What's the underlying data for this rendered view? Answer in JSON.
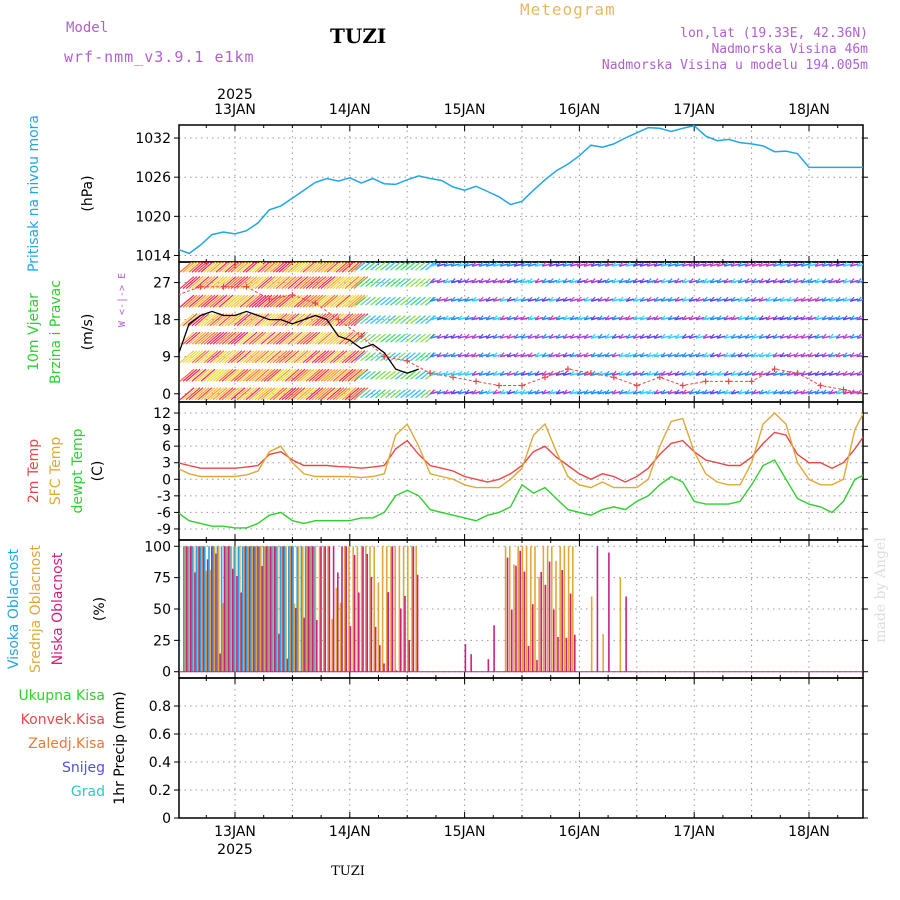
{
  "header": {
    "model_label": "Model",
    "model_name": "wrf-nmm_v3.9.1  e1km",
    "station": "TUZI",
    "product": "Meteogram",
    "coords": "lon,lat (19.33E, 42.36N)",
    "elevation": "Nadmorska Visina 46m",
    "model_elevation": "Nadmorska Visina u modelu 194.005m"
  },
  "footer": {
    "station": "TUZI",
    "watermark": "made by Angel"
  },
  "colors": {
    "pressure": "#22a6e8",
    "temp2m": "#e84848",
    "sfc_temp": "#e0a838",
    "dewpt": "#2ed02e",
    "cloud_high": "#22a6e8",
    "cloud_mid": "#e0a838",
    "cloud_low": "#d0207a",
    "wind_speed": "#000000",
    "wind_gust": "#e84848",
    "title_purple": "#b060d0",
    "product_orange": "#e8b860"
  },
  "time_axis": {
    "year": "2025",
    "ticks": [
      "13JAN",
      "14JAN",
      "15JAN",
      "16JAN",
      "17JAN",
      "18JAN"
    ]
  },
  "chart_data": [
    {
      "type": "line",
      "ylabel_lines": [
        "Pritisak na nivou mora",
        "(hPa)"
      ],
      "ylim": [
        1013,
        1034
      ],
      "yticks": [
        1014,
        1020,
        1026,
        1032
      ],
      "grid": true,
      "x_unit": "day from 13JAN 00UTC",
      "series": [
        {
          "name": "Pritisak na nivou mora",
          "color": "#22a6e8",
          "x": [
            -0.6,
            -0.5,
            -0.4,
            -0.3,
            -0.2,
            -0.1,
            0.0,
            0.1,
            0.2,
            0.3,
            0.4,
            0.5,
            0.6,
            0.7,
            0.8,
            0.9,
            1.0,
            1.1,
            1.2,
            1.3,
            1.4,
            1.5,
            1.6,
            1.7,
            1.8,
            1.9,
            2.0,
            2.1,
            2.2,
            2.3,
            2.4,
            2.5,
            2.6,
            2.7,
            2.8,
            2.9,
            3.0,
            3.1,
            3.2,
            3.3,
            3.4,
            3.5,
            3.6,
            3.7,
            3.8,
            3.9,
            4.0,
            4.1,
            4.2,
            4.3,
            4.4,
            4.5,
            4.6,
            4.7,
            4.8,
            4.9,
            5.0,
            5.1,
            5.2,
            5.3,
            5.4,
            5.5
          ],
          "values": [
            1016.8,
            1015.0,
            1014.3,
            1015.6,
            1017.2,
            1017.6,
            1017.3,
            1017.8,
            1019.0,
            1021.0,
            1021.6,
            1022.8,
            1024.0,
            1025.2,
            1025.8,
            1025.4,
            1025.9,
            1025.1,
            1025.8,
            1025.0,
            1024.9,
            1025.6,
            1026.2,
            1025.8,
            1025.5,
            1024.5,
            1024.0,
            1024.6,
            1023.8,
            1023.0,
            1021.8,
            1022.3,
            1024.0,
            1025.6,
            1027.0,
            1028.0,
            1029.3,
            1030.9,
            1030.6,
            1031.1,
            1032.0,
            1032.8,
            1033.6,
            1033.5,
            1033.0,
            1033.5,
            1033.9,
            1032.3,
            1031.6,
            1031.8,
            1031.3,
            1031.1,
            1030.8,
            1029.9,
            1030.0,
            1029.6,
            1027.5,
            1027.5,
            1027.5,
            1027.5,
            1027.5,
            1027.5
          ]
        }
      ]
    },
    {
      "type": "line",
      "ylabel_lines": [
        "10m Vjetar",
        "Brzina i Pravac",
        "(m/s)"
      ],
      "compass_label": "W <-|-> E",
      "ylim": [
        -2,
        32
      ],
      "yticks": [
        0,
        9,
        18,
        27
      ],
      "grid": true,
      "series": [
        {
          "name": "wind speed",
          "color": "#000000",
          "x": [
            -0.6,
            -0.5,
            -0.4,
            -0.3,
            -0.2,
            -0.1,
            0.0,
            0.1,
            0.2,
            0.3,
            0.4,
            0.5,
            0.6,
            0.7,
            0.8,
            0.9,
            1.0,
            1.1,
            1.2,
            1.3,
            1.4,
            1.5,
            1.6
          ],
          "values": [
            0,
            9,
            17,
            19,
            20,
            19,
            19,
            20,
            19,
            18,
            18,
            17,
            18,
            19,
            18,
            14,
            13,
            11,
            12,
            10,
            6,
            5,
            6
          ]
        },
        {
          "name": "wind gust",
          "color": "#e84848",
          "x": [
            -0.5,
            -0.3,
            -0.1,
            0.1,
            0.3,
            0.5,
            0.7,
            0.9,
            1.1,
            1.3,
            1.5,
            1.7,
            1.9,
            2.1,
            2.3,
            2.5,
            2.7,
            2.9,
            3.1,
            3.3,
            3.5,
            3.7,
            3.9,
            4.1,
            4.3,
            4.5,
            4.7,
            4.9,
            5.1,
            5.3,
            5.5
          ],
          "values": [
            24,
            26,
            26,
            26,
            23,
            24,
            22,
            18,
            14,
            9,
            8,
            5,
            4,
            3,
            2,
            2,
            4,
            6,
            5,
            4,
            2,
            4,
            2,
            3,
            3,
            3,
            6,
            5,
            2,
            1,
            0
          ]
        }
      ]
    },
    {
      "type": "line",
      "ylabel_lines": [
        "2m Temp",
        "SFC Temp",
        "dewpt Temp",
        "(C)"
      ],
      "ylim": [
        -11,
        14
      ],
      "yticks": [
        -9,
        -6,
        -3,
        0,
        3,
        6,
        9,
        12
      ],
      "grid": true,
      "series": [
        {
          "name": "2m Temp",
          "color": "#e84848",
          "x": [
            -0.6,
            -0.5,
            -0.4,
            -0.3,
            -0.2,
            -0.1,
            0.0,
            0.1,
            0.2,
            0.3,
            0.4,
            0.5,
            0.6,
            0.7,
            0.8,
            0.9,
            1.0,
            1.1,
            1.2,
            1.3,
            1.4,
            1.5,
            1.6,
            1.7,
            1.8,
            1.9,
            2.0,
            2.1,
            2.2,
            2.3,
            2.4,
            2.5,
            2.6,
            2.7,
            2.8,
            2.9,
            3.0,
            3.1,
            3.2,
            3.3,
            3.4,
            3.5,
            3.6,
            3.7,
            3.8,
            3.9,
            4.0,
            4.1,
            4.2,
            4.3,
            4.4,
            4.5,
            4.6,
            4.7,
            4.8,
            4.9,
            5.0,
            5.1,
            5.2,
            5.3,
            5.4,
            5.5
          ],
          "values": [
            4.5,
            3.0,
            2.5,
            2.0,
            2.0,
            2.0,
            2.0,
            2.2,
            2.5,
            4.5,
            5.0,
            3.5,
            2.5,
            2.5,
            2.5,
            2.3,
            2.2,
            2.0,
            2.2,
            2.5,
            5.5,
            7.0,
            4.5,
            2.5,
            2.0,
            1.5,
            0.5,
            0.0,
            -0.5,
            0.0,
            1.0,
            2.5,
            5.0,
            6.0,
            4.0,
            2.5,
            1.0,
            0.0,
            1.0,
            0.5,
            -0.5,
            0.5,
            2.0,
            4.5,
            6.5,
            7.0,
            5.0,
            3.5,
            3.0,
            2.5,
            2.5,
            4.0,
            6.5,
            8.5,
            8.0,
            4.5,
            3.0,
            3.0,
            2.0,
            3.0,
            5.5,
            8.5
          ]
        },
        {
          "name": "SFC Temp",
          "color": "#e0a838",
          "x": [
            -0.6,
            -0.5,
            -0.4,
            -0.3,
            -0.2,
            -0.1,
            0.0,
            0.1,
            0.2,
            0.3,
            0.4,
            0.5,
            0.6,
            0.7,
            0.8,
            0.9,
            1.0,
            1.1,
            1.2,
            1.3,
            1.4,
            1.5,
            1.6,
            1.7,
            1.8,
            1.9,
            2.0,
            2.1,
            2.2,
            2.3,
            2.4,
            2.5,
            2.6,
            2.7,
            2.8,
            2.9,
            3.0,
            3.1,
            3.2,
            3.3,
            3.4,
            3.5,
            3.6,
            3.7,
            3.8,
            3.9,
            4.0,
            4.1,
            4.2,
            4.3,
            4.4,
            4.5,
            4.6,
            4.7,
            4.8,
            4.9,
            5.0,
            5.1,
            5.2,
            5.3,
            5.4,
            5.5
          ],
          "values": [
            6.0,
            2.0,
            1.0,
            0.5,
            0.5,
            0.5,
            0.5,
            0.8,
            1.5,
            5.0,
            6.0,
            3.0,
            1.0,
            0.5,
            0.5,
            0.5,
            0.5,
            0.3,
            0.5,
            1.0,
            8.0,
            10.0,
            6.0,
            1.0,
            0.5,
            0.0,
            -1.0,
            -1.5,
            -1.5,
            -1.5,
            0.0,
            2.0,
            8.0,
            10.0,
            5.0,
            0.5,
            -1.0,
            -1.5,
            -0.5,
            -1.5,
            -1.5,
            -1.5,
            0.0,
            6.0,
            10.5,
            11.0,
            5.0,
            1.0,
            -0.5,
            -1.0,
            -1.0,
            3.0,
            10.0,
            12.0,
            10.0,
            3.0,
            0.0,
            -1.0,
            -1.0,
            0.0,
            9.0,
            13.0
          ]
        },
        {
          "name": "dewpt Temp",
          "color": "#2ed02e",
          "x": [
            -0.6,
            -0.5,
            -0.4,
            -0.3,
            -0.2,
            -0.1,
            0.0,
            0.1,
            0.2,
            0.3,
            0.4,
            0.5,
            0.6,
            0.7,
            0.8,
            0.9,
            1.0,
            1.1,
            1.2,
            1.3,
            1.4,
            1.5,
            1.6,
            1.7,
            1.8,
            1.9,
            2.0,
            2.1,
            2.2,
            2.3,
            2.4,
            2.5,
            2.6,
            2.7,
            2.8,
            2.9,
            3.0,
            3.1,
            3.2,
            3.3,
            3.4,
            3.5,
            3.6,
            3.7,
            3.8,
            3.9,
            4.0,
            4.1,
            4.2,
            4.3,
            4.4,
            4.5,
            4.6,
            4.7,
            4.8,
            4.9,
            5.0,
            5.1,
            5.2,
            5.3,
            5.4,
            5.5
          ],
          "values": [
            -3.0,
            -6.0,
            -7.5,
            -8.0,
            -8.5,
            -8.5,
            -8.8,
            -8.8,
            -8.0,
            -6.5,
            -6.0,
            -7.5,
            -8.0,
            -7.5,
            -7.5,
            -7.5,
            -7.5,
            -7.0,
            -7.0,
            -6.0,
            -3.0,
            -2.0,
            -3.0,
            -5.5,
            -6.0,
            -6.5,
            -7.0,
            -7.5,
            -6.5,
            -6.0,
            -5.0,
            -1.0,
            -2.5,
            -1.5,
            -3.5,
            -5.5,
            -6.0,
            -6.5,
            -5.5,
            -5.0,
            -5.5,
            -4.0,
            -3.0,
            -1.0,
            0.5,
            -0.5,
            -4.0,
            -4.5,
            -4.5,
            -4.5,
            -4.0,
            -1.0,
            2.5,
            3.5,
            0.0,
            -3.5,
            -4.5,
            -5.0,
            -6.0,
            -4.0,
            0.0,
            1.0
          ]
        }
      ]
    },
    {
      "type": "bar",
      "ylabel_lines": [
        "Visoka Oblacnost",
        "Srednja Oblacnost",
        "Niska Oblacnost",
        "(%)"
      ],
      "ylim": [
        -5,
        105
      ],
      "yticks": [
        0,
        25,
        50,
        75,
        100
      ],
      "grid": true,
      "series": [
        {
          "name": "Visoka Oblacnost",
          "color": "#22a6e8",
          "x_range": [
            -0.6,
            1.5
          ],
          "values_note": "mostly 100"
        },
        {
          "name": "Srednja Oblacnost",
          "color": "#e0a838",
          "x_range": [
            -0.6,
            4.3
          ],
          "values_note": "0-100"
        },
        {
          "name": "Niska Oblacnost",
          "color": "#d0207a",
          "x_range": [
            -0.6,
            4.3
          ],
          "values_note": "0-100"
        }
      ]
    },
    {
      "type": "bar",
      "ylabel_lines": [
        "1hr Precip (mm)"
      ],
      "legend": [
        "Ukupna Kisa",
        "Konvek.Kisa",
        "Zaledj.Kisa",
        "Snijeg",
        "Grad"
      ],
      "legend_colors": [
        "#2ed02e",
        "#e84848",
        "#f07830",
        "#5050e0",
        "#28c8c8"
      ],
      "ylim": [
        0,
        1.0
      ],
      "yticks": [
        0,
        0.2,
        0.4,
        0.6,
        0.8
      ],
      "grid": true,
      "series": []
    }
  ]
}
